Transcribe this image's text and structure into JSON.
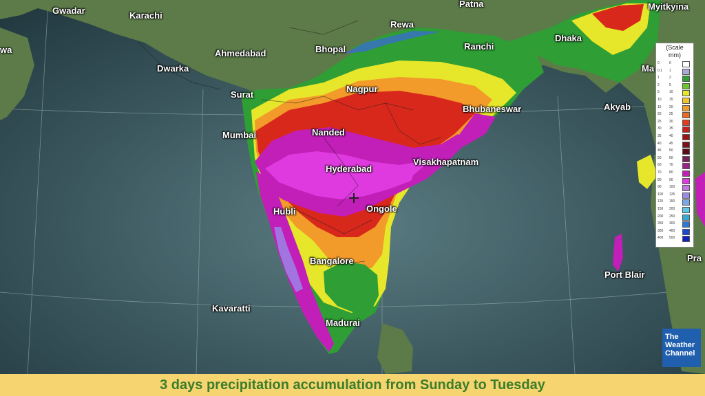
{
  "map": {
    "cities": [
      {
        "id": "gwadar",
        "label": "Gwadar"
      },
      {
        "id": "karachi",
        "label": "Karachi"
      },
      {
        "id": "patna",
        "label": "Patna"
      },
      {
        "id": "myitkyina",
        "label": "Myitkyina"
      },
      {
        "id": "rewa",
        "label": "Rewa"
      },
      {
        "id": "dhaka",
        "label": "Dhaka"
      },
      {
        "id": "ahmedabad",
        "label": "Ahmedabad"
      },
      {
        "id": "bhopal",
        "label": "Bhopal"
      },
      {
        "id": "ranchi",
        "label": "Ranchi"
      },
      {
        "id": "dwarka",
        "label": "Dwarka"
      },
      {
        "id": "surat",
        "label": "Surat"
      },
      {
        "id": "nagpur",
        "label": "Nagpur"
      },
      {
        "id": "akyab",
        "label": "Akyab"
      },
      {
        "id": "bhubaneswar",
        "label": "Bhubaneswar"
      },
      {
        "id": "mumbai",
        "label": "Mumbai"
      },
      {
        "id": "nanded",
        "label": "Nanded"
      },
      {
        "id": "hyderabad",
        "label": "Hyderabad"
      },
      {
        "id": "visakhapatnam",
        "label": "Visakhapatnam"
      },
      {
        "id": "hubli",
        "label": "Hubli"
      },
      {
        "id": "ongole",
        "label": "Ongole"
      },
      {
        "id": "bangalore",
        "label": "Bangalore"
      },
      {
        "id": "port-blair",
        "label": "Port Blair"
      },
      {
        "id": "kavaratti",
        "label": "Kavaratti"
      },
      {
        "id": "madurai",
        "label": "Madurai"
      },
      {
        "id": "edge-left",
        "label": "wa"
      },
      {
        "id": "edge-ma",
        "label": "Ma"
      },
      {
        "id": "edge-pra",
        "label": "Pra"
      }
    ]
  },
  "legend": {
    "title_line1": "(Scale",
    "title_line2": "mm)",
    "rows": [
      {
        "lo": "0",
        "hi": "0",
        "color": "#ffffff"
      },
      {
        "lo": "0.1",
        "hi": "1",
        "color": "#a9a9d9"
      },
      {
        "lo": "1",
        "hi": "2",
        "color": "#2e9e35"
      },
      {
        "lo": "2",
        "hi": "5",
        "color": "#6cc62e"
      },
      {
        "lo": "5",
        "hi": "10",
        "color": "#e6e62a"
      },
      {
        "lo": "10",
        "hi": "15",
        "color": "#f2c42c"
      },
      {
        "lo": "15",
        "hi": "20",
        "color": "#f29a2a"
      },
      {
        "lo": "20",
        "hi": "25",
        "color": "#ee6a22"
      },
      {
        "lo": "25",
        "hi": "30",
        "color": "#e63c1c"
      },
      {
        "lo": "30",
        "hi": "35",
        "color": "#c8201a"
      },
      {
        "lo": "35",
        "hi": "40",
        "color": "#a01414"
      },
      {
        "lo": "40",
        "hi": "45",
        "color": "#7c0f18"
      },
      {
        "lo": "45",
        "hi": "50",
        "color": "#5c0a1a"
      },
      {
        "lo": "50",
        "hi": "60",
        "color": "#7a1f5a"
      },
      {
        "lo": "60",
        "hi": "70",
        "color": "#9c1f8a"
      },
      {
        "lo": "70",
        "hi": "80",
        "color": "#c21eb8"
      },
      {
        "lo": "80",
        "hi": "90",
        "color": "#df3adf"
      },
      {
        "lo": "90",
        "hi": "100",
        "color": "#c276e6"
      },
      {
        "lo": "100",
        "hi": "125",
        "color": "#9a8ae8"
      },
      {
        "lo": "125",
        "hi": "150",
        "color": "#7aa6e6"
      },
      {
        "lo": "150",
        "hi": "200",
        "color": "#5ec6e6"
      },
      {
        "lo": "200",
        "hi": "250",
        "color": "#3aa6d6"
      },
      {
        "lo": "250",
        "hi": "300",
        "color": "#2a7ad6"
      },
      {
        "lo": "300",
        "hi": "400",
        "color": "#1a4ad0"
      },
      {
        "lo": "400",
        "hi": "500",
        "color": "#1020c0"
      }
    ]
  },
  "logo": {
    "line1": "The",
    "line2": "Weather",
    "line3": "Channel"
  },
  "caption": "3 days precipitation accumulation from Sunday to Tuesday",
  "colors": {
    "ocean": "#2f4a52",
    "land": "#5f7a4a",
    "caption_bg": "#f6d470",
    "caption_text": "#3b7d2a",
    "logo_bg": "#1f5fae"
  }
}
